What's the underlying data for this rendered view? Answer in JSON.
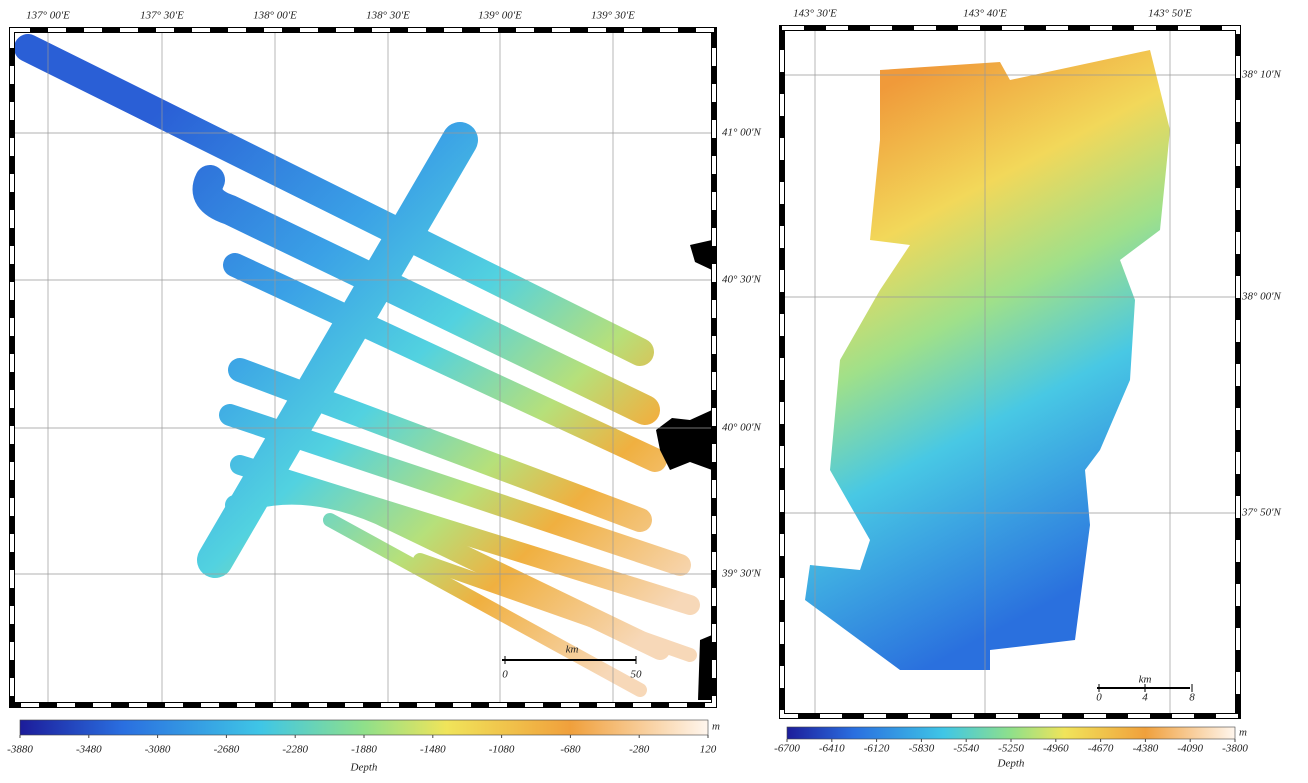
{
  "left_map": {
    "lon_labels": [
      "137° 00'E",
      "137° 30'E",
      "138° 00'E",
      "138° 30'E",
      "139° 00'E",
      "139° 30'E"
    ],
    "lat_labels": [
      "41° 00'N",
      "40° 30'N",
      "40° 00'N",
      "39° 30'N"
    ],
    "scale": {
      "unit": "km",
      "labels": [
        "0",
        "50"
      ]
    },
    "colorbar": {
      "ticks": [
        -3880,
        -3480,
        -3080,
        -2680,
        -2280,
        -1880,
        -1480,
        -1080,
        -680,
        -280,
        120
      ],
      "unit": "m",
      "label": "Depth"
    }
  },
  "right_map": {
    "lon_labels": [
      "143° 30'E",
      "143° 40'E",
      "143° 50'E"
    ],
    "lat_labels": [
      "38° 10'N",
      "38° 00'N",
      "37° 50'N"
    ],
    "scale": {
      "unit": "km",
      "labels": [
        "0",
        "4",
        "8"
      ]
    },
    "colorbar": {
      "ticks": [
        -6700,
        -6410,
        -6120,
        -5830,
        -5540,
        -5250,
        -4960,
        -4670,
        -4380,
        -4090,
        -3800
      ],
      "unit": "m",
      "label": "Depth"
    }
  }
}
